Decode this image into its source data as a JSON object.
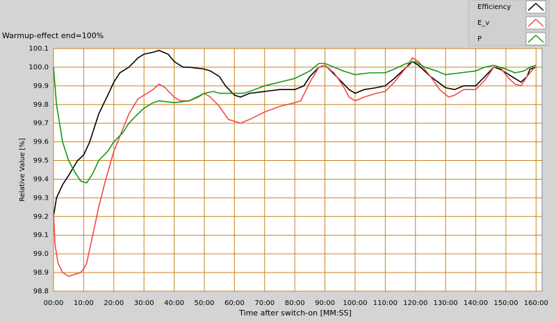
{
  "chart_data": {
    "type": "line",
    "annotation": "Warmup-effect end=100%",
    "x_label": "Time after switch-on [MM:SS]",
    "y_label": "Relative Value [%]",
    "xlim": [
      0,
      162
    ],
    "ylim": [
      98.8,
      100.1
    ],
    "xticks": [
      {
        "value": 0,
        "label": "00:00"
      },
      {
        "value": 10,
        "label": "10:00"
      },
      {
        "value": 20,
        "label": "20:00"
      },
      {
        "value": 30,
        "label": "30:00"
      },
      {
        "value": 40,
        "label": "40:00"
      },
      {
        "value": 50,
        "label": "50:00"
      },
      {
        "value": 60,
        "label": "60:00"
      },
      {
        "value": 70,
        "label": "70:00"
      },
      {
        "value": 80,
        "label": "80:00"
      },
      {
        "value": 90,
        "label": "90:00"
      },
      {
        "value": 100,
        "label": "100:00"
      },
      {
        "value": 110,
        "label": "110:00"
      },
      {
        "value": 120,
        "label": "120:00"
      },
      {
        "value": 130,
        "label": "130:00"
      },
      {
        "value": 140,
        "label": "140:00"
      },
      {
        "value": 150,
        "label": "150:00"
      },
      {
        "value": 160,
        "label": "160:00"
      }
    ],
    "yticks": [
      98.8,
      98.9,
      {
        "value": 99,
        "label": "99.0"
      },
      99.1,
      99.2,
      99.3,
      99.4,
      99.5,
      99.6,
      99.7,
      99.8,
      99.9,
      {
        "value": 100,
        "label": "100.0"
      },
      100.1
    ],
    "grid": true,
    "grid_color": "#c8821e",
    "legend": "top-right",
    "series": [
      {
        "name": "Efficiency",
        "color": "#000000",
        "x": [
          0,
          1,
          3,
          5,
          8,
          10,
          12,
          15,
          18,
          20,
          22,
          25,
          28,
          30,
          33,
          35,
          38,
          40,
          43,
          45,
          50,
          52,
          55,
          57,
          60,
          62,
          65,
          70,
          75,
          80,
          83,
          85,
          88,
          90,
          92,
          95,
          98,
          100,
          103,
          107,
          110,
          113,
          117,
          119,
          121,
          125,
          130,
          133,
          136,
          140,
          143,
          146,
          148,
          152,
          155,
          157,
          158,
          160
        ],
        "values": [
          99.2,
          99.3,
          99.37,
          99.42,
          99.5,
          99.53,
          99.6,
          99.75,
          99.85,
          99.92,
          99.97,
          100.0,
          100.05,
          100.07,
          100.08,
          100.09,
          100.07,
          100.03,
          100.0,
          100.0,
          99.99,
          99.98,
          99.95,
          99.9,
          99.85,
          99.84,
          99.86,
          99.87,
          99.88,
          99.88,
          99.9,
          99.95,
          100.0,
          100.01,
          99.98,
          99.93,
          99.88,
          99.86,
          99.88,
          99.89,
          99.9,
          99.94,
          100.0,
          100.03,
          100.01,
          99.95,
          99.89,
          99.88,
          99.9,
          99.9,
          99.95,
          100.0,
          99.99,
          99.95,
          99.92,
          99.95,
          99.99,
          100.0
        ]
      },
      {
        "name": "E_v",
        "color": "#f04848",
        "x": [
          0,
          0.5,
          1.5,
          3,
          5,
          7,
          9,
          10,
          11,
          13,
          15,
          17,
          20,
          23,
          25,
          28,
          30,
          33,
          35,
          37,
          40,
          42,
          45,
          48,
          50,
          52,
          55,
          58,
          60,
          62,
          65,
          70,
          75,
          80,
          82,
          85,
          88,
          90,
          93,
          96,
          98,
          100,
          103,
          107,
          110,
          113,
          117,
          119,
          121,
          125,
          128,
          131,
          133,
          136,
          140,
          143,
          146,
          148,
          151,
          153,
          155,
          157,
          159,
          160
        ],
        "values": [
          99.22,
          99.05,
          98.95,
          98.9,
          98.88,
          98.89,
          98.9,
          98.92,
          98.95,
          99.1,
          99.25,
          99.38,
          99.55,
          99.67,
          99.75,
          99.83,
          99.85,
          99.88,
          99.91,
          99.89,
          99.84,
          99.82,
          99.82,
          99.84,
          99.86,
          99.84,
          99.79,
          99.72,
          99.71,
          99.7,
          99.72,
          99.76,
          99.79,
          99.81,
          99.82,
          99.92,
          100.0,
          100.01,
          99.97,
          99.9,
          99.84,
          99.82,
          99.84,
          99.86,
          99.87,
          99.92,
          100.0,
          100.05,
          100.03,
          99.95,
          99.88,
          99.84,
          99.85,
          99.88,
          99.88,
          99.93,
          100.0,
          100.0,
          99.94,
          99.91,
          99.9,
          99.95,
          99.99,
          100.0
        ]
      },
      {
        "name": "P",
        "color": "#119911",
        "x": [
          0,
          1,
          2,
          3,
          5,
          7,
          9,
          11,
          13,
          15,
          18,
          20,
          23,
          25,
          28,
          30,
          33,
          35,
          40,
          45,
          50,
          53,
          55,
          58,
          60,
          63,
          65,
          70,
          75,
          80,
          85,
          88,
          90,
          93,
          96,
          100,
          105,
          110,
          113,
          117,
          120,
          123,
          127,
          130,
          135,
          140,
          143,
          146,
          150,
          153,
          156,
          158,
          160
        ],
        "values": [
          100.0,
          99.8,
          99.7,
          99.6,
          99.5,
          99.44,
          99.39,
          99.38,
          99.43,
          99.5,
          99.55,
          99.6,
          99.65,
          99.7,
          99.75,
          99.78,
          99.81,
          99.82,
          99.81,
          99.82,
          99.86,
          99.87,
          99.86,
          99.86,
          99.86,
          99.86,
          99.87,
          99.9,
          99.92,
          99.94,
          99.98,
          100.02,
          100.02,
          100.0,
          99.98,
          99.96,
          99.97,
          99.97,
          99.99,
          100.02,
          100.03,
          100.0,
          99.98,
          99.96,
          99.97,
          99.98,
          100.0,
          100.01,
          99.99,
          99.97,
          99.98,
          100.0,
          100.01
        ]
      }
    ]
  }
}
